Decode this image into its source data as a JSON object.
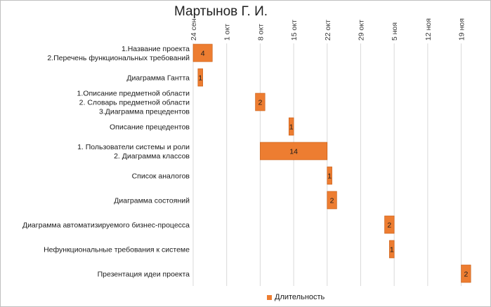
{
  "chart_data": {
    "type": "bar",
    "orientation": "horizontal-gantt",
    "title": "Мартынов Г. И.",
    "x_axis_position": "top",
    "x_range": [
      "2015-09-24",
      "2015-11-22"
    ],
    "x_ticks": [
      "24 сен",
      "1 окт",
      "8 окт",
      "15 окт",
      "22 окт",
      "29 окт",
      "5 ноя",
      "12 ноя",
      "19 ноя"
    ],
    "grid": true,
    "legend": {
      "position": "bottom",
      "entries": [
        "Длительность"
      ]
    },
    "colors": {
      "bar": "#ed7d31",
      "bar_border": "#c55a11",
      "grid": "#d9d9d9"
    },
    "series": [
      {
        "name": "Длительность",
        "tasks": [
          {
            "label": [
              "1.Название проекта",
              "2.Перечень функциональных требований"
            ],
            "start": "2015-09-24",
            "duration": 4
          },
          {
            "label": [
              "Диаграмма Гантта"
            ],
            "start": "2015-09-25",
            "duration": 1
          },
          {
            "label": [
              "1.Описание предметной области",
              "2. Словарь предметной области",
              "3.Диаграмма прецедентов"
            ],
            "start": "2015-10-07",
            "duration": 2
          },
          {
            "label": [
              "Описание прецедентов"
            ],
            "start": "2015-10-14",
            "duration": 1
          },
          {
            "label": [
              "1. Пользователи системы и роли",
              "2. Диаграмма классов"
            ],
            "start": "2015-10-08",
            "duration": 14
          },
          {
            "label": [
              "Список аналогов"
            ],
            "start": "2015-10-22",
            "duration": 1
          },
          {
            "label": [
              "Диаграмма состояний"
            ],
            "start": "2015-10-22",
            "duration": 2
          },
          {
            "label": [
              "Диаграмма автоматизируемого бизнес-процесса"
            ],
            "start": "2015-11-03",
            "duration": 2
          },
          {
            "label": [
              "Нефункциональные требования к системе"
            ],
            "start": "2015-11-04",
            "duration": 1
          },
          {
            "label": [
              "Презентация идеи проекта"
            ],
            "start": "2015-11-19",
            "duration": 2
          }
        ]
      }
    ]
  }
}
